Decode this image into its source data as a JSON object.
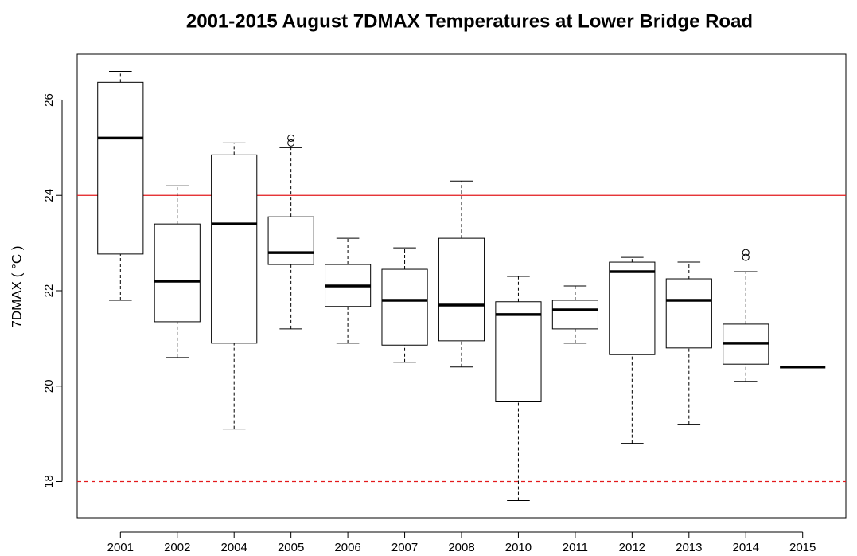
{
  "chart_data": {
    "type": "boxplot",
    "title": "2001-2015 August 7DMAX Temperatures at Lower Bridge Road",
    "y_label": "7DMAX ( °C )",
    "categories": [
      "2001",
      "2002",
      "2004",
      "2005",
      "2006",
      "2007",
      "2008",
      "2010",
      "2011",
      "2012",
      "2013",
      "2014",
      "2015"
    ],
    "boxes": [
      {
        "min": 21.8,
        "q1": 22.77,
        "median": 25.2,
        "q3": 26.37,
        "max": 26.6,
        "outliers": []
      },
      {
        "min": 20.6,
        "q1": 21.35,
        "median": 22.2,
        "q3": 23.4,
        "max": 24.2,
        "outliers": []
      },
      {
        "min": 19.1,
        "q1": 20.9,
        "median": 23.4,
        "q3": 24.85,
        "max": 25.1,
        "outliers": []
      },
      {
        "min": 21.2,
        "q1": 22.55,
        "median": 22.8,
        "q3": 23.55,
        "max": 25.0,
        "outliers": [
          25.1,
          25.2
        ]
      },
      {
        "min": 20.9,
        "q1": 21.67,
        "median": 22.1,
        "q3": 22.55,
        "max": 23.1,
        "outliers": []
      },
      {
        "min": 20.5,
        "q1": 20.86,
        "median": 21.8,
        "q3": 22.45,
        "max": 22.9,
        "outliers": []
      },
      {
        "min": 20.4,
        "q1": 20.95,
        "median": 21.7,
        "q3": 23.1,
        "max": 24.3,
        "outliers": []
      },
      {
        "min": 17.6,
        "q1": 19.67,
        "median": 21.5,
        "q3": 21.77,
        "max": 22.3,
        "outliers": []
      },
      {
        "min": 20.9,
        "q1": 21.2,
        "median": 21.6,
        "q3": 21.8,
        "max": 22.1,
        "outliers": []
      },
      {
        "min": 18.8,
        "q1": 20.66,
        "median": 22.4,
        "q3": 22.6,
        "max": 22.7,
        "outliers": []
      },
      {
        "min": 19.2,
        "q1": 20.8,
        "median": 21.8,
        "q3": 22.25,
        "max": 22.6,
        "outliers": []
      },
      {
        "min": 20.1,
        "q1": 20.46,
        "median": 20.9,
        "q3": 21.3,
        "max": 22.4,
        "outliers": [
          22.7,
          22.8
        ]
      },
      {
        "min": 20.4,
        "q1": 20.4,
        "median": 20.4,
        "q3": 20.4,
        "max": 20.4,
        "outliers": []
      }
    ],
    "ylim": [
      17.24,
      26.96
    ],
    "yticks": [
      18,
      20,
      22,
      24,
      26
    ],
    "reference_lines": [
      {
        "value": 24,
        "color": "#e31a1c",
        "style": "solid"
      },
      {
        "value": 18,
        "color": "#e31a1c",
        "style": "dashed"
      }
    ],
    "color": "#000000"
  }
}
